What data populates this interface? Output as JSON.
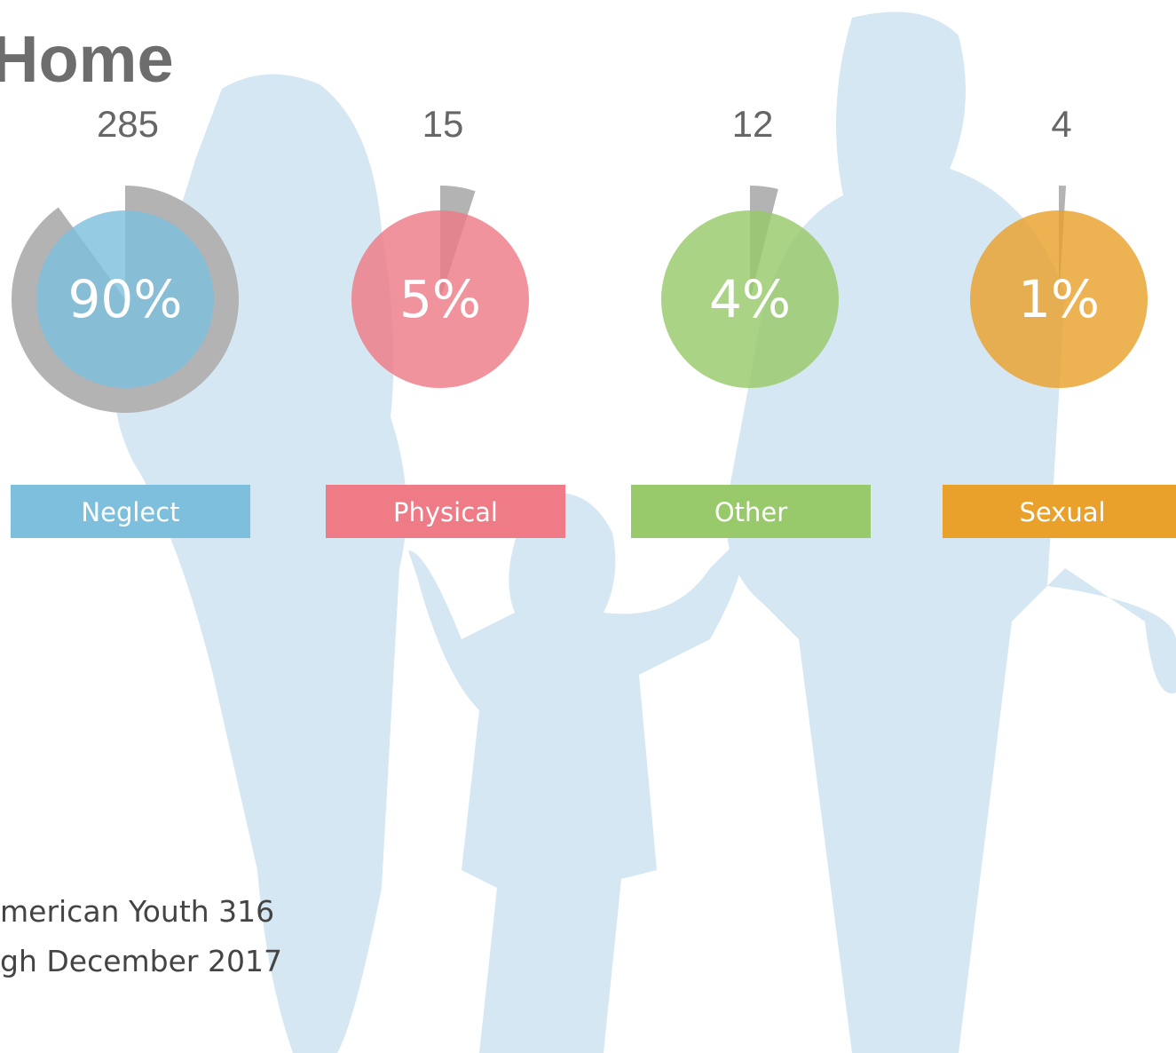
{
  "chart_data": {
    "type": "ring",
    "title": "Home",
    "categories": [
      "Neglect",
      "Physical",
      "Other",
      "Sexual"
    ],
    "values": [
      90,
      5,
      4,
      1
    ],
    "value_labels": [
      "90%",
      "5%",
      "4%",
      "1%"
    ],
    "counts": [
      285,
      15,
      12,
      4
    ],
    "colors": [
      "#7fbfde",
      "#ee7b86",
      "#98c96a",
      "#e9a12c"
    ],
    "footnote": [
      "merican Youth 316",
      "gh December 2017"
    ]
  }
}
